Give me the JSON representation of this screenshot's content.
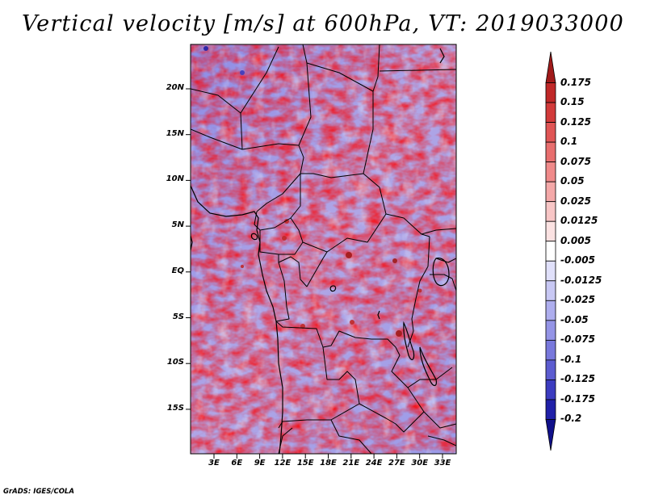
{
  "title": "Vertical velocity [m/s] at 600hPa, VT: 2019033000",
  "credit": "GrADS: IGES/COLA",
  "map": {
    "variable": "Vertical velocity",
    "units": "m/s",
    "level": "600hPa",
    "valid_time": "2019033000",
    "lat_labels": [
      "20N",
      "15N",
      "10N",
      "5N",
      "EQ",
      "5S",
      "10S",
      "15S"
    ],
    "lon_labels": [
      "3E",
      "6E",
      "9E",
      "12E",
      "15E",
      "18E",
      "21E",
      "24E",
      "27E",
      "30E",
      "33E"
    ]
  },
  "colorbar": {
    "labels": [
      "0.175",
      "0.15",
      "0.125",
      "0.1",
      "0.075",
      "0.05",
      "0.025",
      "0.0125",
      "0.005",
      "-0.005",
      "-0.0125",
      "-0.025",
      "-0.05",
      "-0.075",
      "-0.1",
      "-0.125",
      "-0.175",
      "-0.2"
    ],
    "colors": [
      "#a01a1a",
      "#c02828",
      "#d23a3a",
      "#e05555",
      "#e86e6e",
      "#f08a8a",
      "#f4a8a8",
      "#f8c6c6",
      "#fbe2e2",
      "#ffffff",
      "#e0e0fa",
      "#c8c8f4",
      "#aeaeee",
      "#9494e6",
      "#7878dc",
      "#5c5cd0",
      "#3c3cc0",
      "#2020a8",
      "#10108a"
    ]
  }
}
